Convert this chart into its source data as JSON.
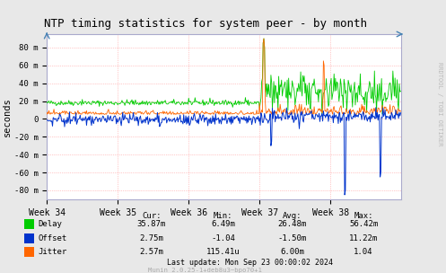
{
  "title": "NTP timing statistics for system peer - by month",
  "ylabel": "seconds",
  "watermark": "RRDTOOL / TOBI OETIKER",
  "munin_text": "Munin 2.0.25-1+deb8u3~bpo70+1",
  "last_update": "Last update: Mon Sep 23 00:00:02 2024",
  "xlabels": [
    "Week 34",
    "Week 35",
    "Week 36",
    "Week 37",
    "Week 38"
  ],
  "yticks": [
    "-80 m",
    "-60 m",
    "-40 m",
    "-20 m",
    "0",
    "20 m",
    "40 m",
    "60 m",
    "80 m"
  ],
  "ytick_vals": [
    -80,
    -60,
    -40,
    -20,
    0,
    20,
    40,
    60,
    80
  ],
  "ylim": [
    -90,
    95
  ],
  "bg_color": "#e8e8e8",
  "plot_bg_color": "#ffffff",
  "grid_color": "#ff9999",
  "delay_color": "#00cc00",
  "offset_color": "#0033cc",
  "jitter_color": "#ff6600",
  "legend_rows": [
    {
      "label": "Delay",
      "cur": "35.87m",
      "min": "6.49m",
      "avg": "26.48m",
      "max": "56.42m"
    },
    {
      "label": "Offset",
      "cur": "2.75m",
      "min": "-1.04",
      "avg": "-1.50m",
      "max": "11.22m"
    },
    {
      "label": "Jitter",
      "cur": "2.57m",
      "min": "115.41u",
      "avg": "6.00m",
      "max": "1.04"
    }
  ],
  "legend_colors": [
    "#00cc00",
    "#0033cc",
    "#ff6600"
  ]
}
